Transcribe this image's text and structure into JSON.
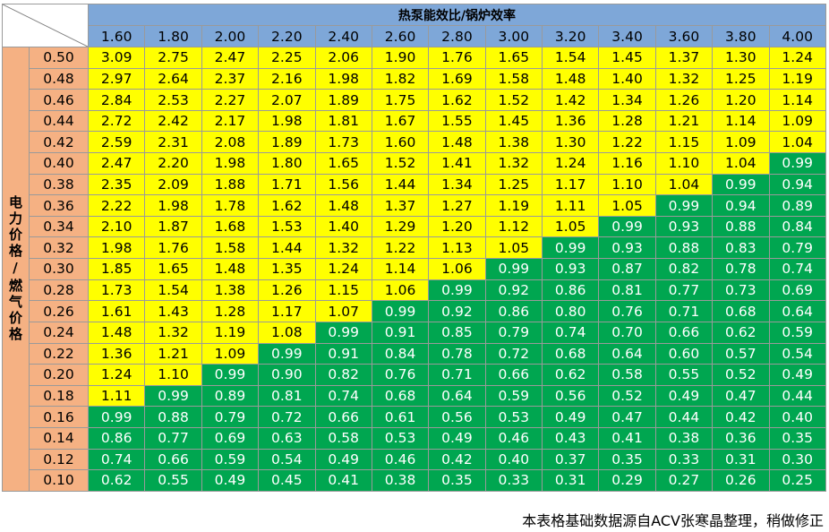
{
  "header": {
    "title": "热泵能效比/锅炉效率",
    "side_label": "电力价格/燃气价格"
  },
  "colors": {
    "header_blue": "#7ea7d8",
    "side_orange": "#f5b183",
    "yellow": "#ffff00",
    "green": "#00a650"
  },
  "columns": [
    "1.60",
    "1.80",
    "2.00",
    "2.20",
    "2.40",
    "2.60",
    "2.80",
    "3.00",
    "3.20",
    "3.40",
    "3.60",
    "3.80",
    "4.00"
  ],
  "rows": [
    {
      "label": "0.50",
      "values": [
        "3.09",
        "2.75",
        "2.47",
        "2.25",
        "2.06",
        "1.90",
        "1.76",
        "1.65",
        "1.54",
        "1.45",
        "1.37",
        "1.30",
        "1.24"
      ]
    },
    {
      "label": "0.48",
      "values": [
        "2.97",
        "2.64",
        "2.37",
        "2.16",
        "1.98",
        "1.82",
        "1.69",
        "1.58",
        "1.48",
        "1.40",
        "1.32",
        "1.25",
        "1.19"
      ]
    },
    {
      "label": "0.46",
      "values": [
        "2.84",
        "2.53",
        "2.27",
        "2.07",
        "1.89",
        "1.75",
        "1.62",
        "1.52",
        "1.42",
        "1.34",
        "1.26",
        "1.20",
        "1.14"
      ]
    },
    {
      "label": "0.44",
      "values": [
        "2.72",
        "2.42",
        "2.17",
        "1.98",
        "1.81",
        "1.67",
        "1.55",
        "1.45",
        "1.36",
        "1.28",
        "1.21",
        "1.14",
        "1.09"
      ]
    },
    {
      "label": "0.42",
      "values": [
        "2.59",
        "2.31",
        "2.08",
        "1.89",
        "1.73",
        "1.60",
        "1.48",
        "1.38",
        "1.30",
        "1.22",
        "1.15",
        "1.09",
        "1.04"
      ]
    },
    {
      "label": "0.40",
      "values": [
        "2.47",
        "2.20",
        "1.98",
        "1.80",
        "1.65",
        "1.52",
        "1.41",
        "1.32",
        "1.24",
        "1.16",
        "1.10",
        "1.04",
        "0.99"
      ]
    },
    {
      "label": "0.38",
      "values": [
        "2.35",
        "2.09",
        "1.88",
        "1.71",
        "1.56",
        "1.44",
        "1.34",
        "1.25",
        "1.17",
        "1.10",
        "1.04",
        "0.99",
        "0.94"
      ]
    },
    {
      "label": "0.36",
      "values": [
        "2.22",
        "1.98",
        "1.78",
        "1.62",
        "1.48",
        "1.37",
        "1.27",
        "1.19",
        "1.11",
        "1.05",
        "0.99",
        "0.94",
        "0.89"
      ]
    },
    {
      "label": "0.34",
      "values": [
        "2.10",
        "1.87",
        "1.68",
        "1.53",
        "1.40",
        "1.29",
        "1.20",
        "1.12",
        "1.05",
        "0.99",
        "0.93",
        "0.88",
        "0.84"
      ]
    },
    {
      "label": "0.32",
      "values": [
        "1.98",
        "1.76",
        "1.58",
        "1.44",
        "1.32",
        "1.22",
        "1.13",
        "1.05",
        "0.99",
        "0.93",
        "0.88",
        "0.83",
        "0.79"
      ]
    },
    {
      "label": "0.30",
      "values": [
        "1.85",
        "1.65",
        "1.48",
        "1.35",
        "1.24",
        "1.14",
        "1.06",
        "0.99",
        "0.93",
        "0.87",
        "0.82",
        "0.78",
        "0.74"
      ]
    },
    {
      "label": "0.28",
      "values": [
        "1.73",
        "1.54",
        "1.38",
        "1.26",
        "1.15",
        "1.06",
        "0.99",
        "0.92",
        "0.86",
        "0.81",
        "0.77",
        "0.73",
        "0.69"
      ]
    },
    {
      "label": "0.26",
      "values": [
        "1.61",
        "1.43",
        "1.28",
        "1.17",
        "1.07",
        "0.99",
        "0.92",
        "0.86",
        "0.80",
        "0.76",
        "0.71",
        "0.68",
        "0.64"
      ]
    },
    {
      "label": "0.24",
      "values": [
        "1.48",
        "1.32",
        "1.19",
        "1.08",
        "0.99",
        "0.91",
        "0.85",
        "0.79",
        "0.74",
        "0.70",
        "0.66",
        "0.62",
        "0.59"
      ]
    },
    {
      "label": "0.22",
      "values": [
        "1.36",
        "1.21",
        "1.09",
        "0.99",
        "0.91",
        "0.84",
        "0.78",
        "0.72",
        "0.68",
        "0.64",
        "0.60",
        "0.57",
        "0.54"
      ]
    },
    {
      "label": "0.20",
      "values": [
        "1.24",
        "1.10",
        "0.99",
        "0.90",
        "0.82",
        "0.76",
        "0.71",
        "0.66",
        "0.62",
        "0.58",
        "0.55",
        "0.52",
        "0.49"
      ]
    },
    {
      "label": "0.18",
      "values": [
        "1.11",
        "0.99",
        "0.89",
        "0.81",
        "0.74",
        "0.68",
        "0.64",
        "0.59",
        "0.56",
        "0.52",
        "0.49",
        "0.47",
        "0.44"
      ]
    },
    {
      "label": "0.16",
      "values": [
        "0.99",
        "0.88",
        "0.79",
        "0.72",
        "0.66",
        "0.61",
        "0.56",
        "0.53",
        "0.49",
        "0.47",
        "0.44",
        "0.42",
        "0.40"
      ]
    },
    {
      "label": "0.14",
      "values": [
        "0.86",
        "0.77",
        "0.69",
        "0.63",
        "0.58",
        "0.53",
        "0.49",
        "0.46",
        "0.43",
        "0.41",
        "0.38",
        "0.36",
        "0.35"
      ]
    },
    {
      "label": "0.12",
      "values": [
        "0.74",
        "0.66",
        "0.59",
        "0.54",
        "0.49",
        "0.46",
        "0.42",
        "0.40",
        "0.37",
        "0.35",
        "0.33",
        "0.31",
        "0.30"
      ]
    },
    {
      "label": "0.10",
      "values": [
        "0.62",
        "0.55",
        "0.49",
        "0.45",
        "0.41",
        "0.38",
        "0.35",
        "0.33",
        "0.31",
        "0.29",
        "0.27",
        "0.26",
        "0.25"
      ]
    }
  ],
  "footnote": "本表格基础数据源自ACV张寒晶整理，稍做修正"
}
